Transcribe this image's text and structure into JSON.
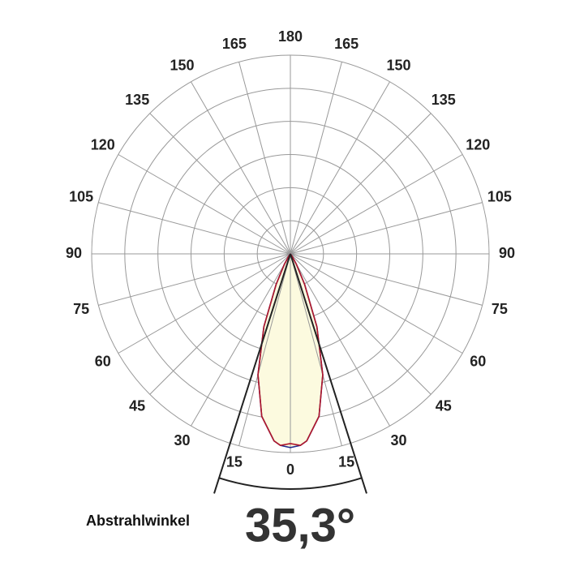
{
  "chart_data": {
    "type": "polar",
    "angle_ticks": [
      0,
      15,
      30,
      45,
      60,
      75,
      90,
      105,
      120,
      135,
      150,
      165,
      180
    ],
    "x": [
      0,
      3,
      5,
      10,
      15,
      20,
      25,
      30,
      35,
      40
    ],
    "series": [
      {
        "color": "#1f2a8c",
        "values": [
          0.975,
          0.965,
          0.945,
          0.83,
          0.63,
          0.39,
          0.17,
          0.06,
          0.015,
          0
        ]
      },
      {
        "color": "#b0162a",
        "values": [
          0.955,
          0.965,
          0.945,
          0.83,
          0.63,
          0.39,
          0.17,
          0.06,
          0.015,
          0
        ]
      }
    ],
    "fill": "#fcfadf",
    "beam_angle": {
      "value": 35.3,
      "label": "35,3°"
    },
    "beam_caption": "Abstrahlwinkel"
  }
}
